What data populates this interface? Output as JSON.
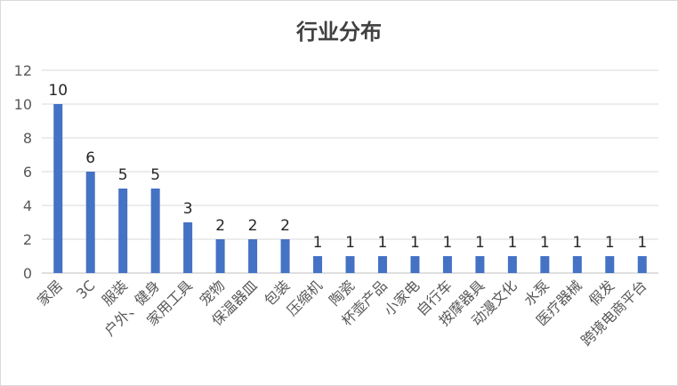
{
  "chart_data": {
    "type": "bar",
    "title": "行业分布",
    "categories": [
      "家居",
      "3C",
      "服装",
      "户外、健身",
      "家用工具",
      "宠物",
      "保温器皿",
      "包装",
      "压缩机",
      "陶瓷",
      "杯壶产品",
      "小家电",
      "自行车",
      "按摩器具",
      "动漫文化",
      "水泵",
      "医疗器械",
      "假发",
      "跨境电商平台"
    ],
    "values": [
      10,
      6,
      5,
      5,
      3,
      2,
      2,
      2,
      1,
      1,
      1,
      1,
      1,
      1,
      1,
      1,
      1,
      1,
      1
    ],
    "ylim": [
      0,
      12
    ],
    "yticks": [
      0,
      2,
      4,
      6,
      8,
      10,
      12
    ],
    "grid": true,
    "legend": "none",
    "bar_color": "#4472c4"
  }
}
